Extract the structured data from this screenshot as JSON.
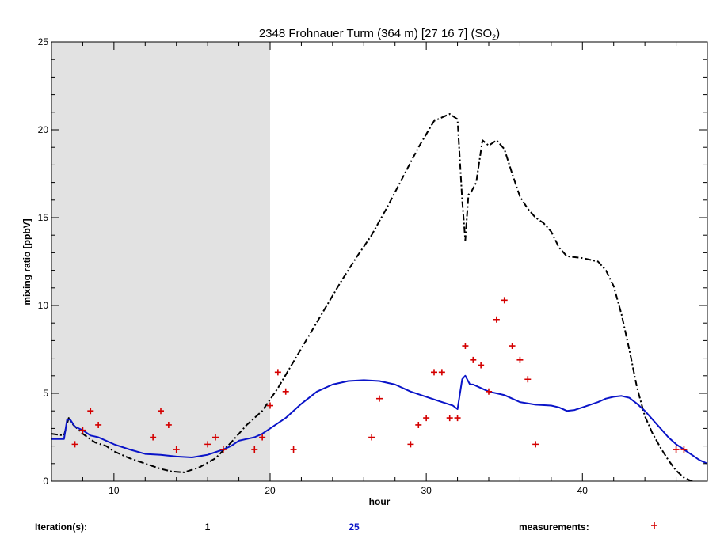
{
  "chart_data": {
    "type": "line",
    "title_main": "2348 Frohnauer Turm (364 m)  [27 16 7]  (SO",
    "title_sub": "2",
    "title_end": ")",
    "xlabel": "hour",
    "ylabel": "mixing ratio [ppbV]",
    "xlim": [
      6,
      48
    ],
    "ylim": [
      0,
      25
    ],
    "x_ticks": [
      10,
      20,
      30,
      40
    ],
    "y_ticks": [
      0,
      5,
      10,
      15,
      20,
      25
    ],
    "night_shading": [
      6,
      20
    ],
    "grid": false,
    "legend": {
      "label": "Iteration(s):",
      "first_iteration": "1",
      "last_iteration": "25",
      "measurements_label": "measurements:",
      "placement": "bottom"
    },
    "colors": {
      "iteration_1": "#000000",
      "iteration_25": "#0a14c8",
      "measurements": "#d40000",
      "shading": "#e2e2e2"
    },
    "series": [
      {
        "name": "1",
        "style": "dash-dot",
        "x": [
          6,
          6.8,
          7.1,
          7.4,
          8,
          8.8,
          9.5,
          10,
          11,
          12,
          13,
          13.7,
          14.5,
          15.5,
          16.5,
          17.5,
          18.5,
          19.5,
          20.5,
          21.5,
          22.5,
          23.5,
          24.5,
          25.5,
          26.5,
          27.5,
          28.5,
          29.5,
          30.5,
          31.5,
          32,
          32.3,
          32.5,
          32.7,
          32.9,
          33.2,
          33.6,
          34,
          34.5,
          35,
          35.5,
          36,
          36.5,
          37,
          37.5,
          38,
          38.5,
          39,
          40,
          41,
          41.5,
          42,
          42.5,
          43,
          43.5,
          44,
          44.5,
          45,
          45.5,
          46,
          46.5,
          47,
          47.5,
          48
        ],
        "y": [
          2.7,
          2.6,
          3.6,
          3.2,
          2.7,
          2.2,
          2.0,
          1.7,
          1.3,
          1.0,
          0.7,
          0.55,
          0.5,
          0.8,
          1.3,
          2.2,
          3.2,
          4.0,
          5.3,
          6.8,
          8.3,
          9.8,
          11.3,
          12.7,
          14.0,
          15.6,
          17.3,
          19.0,
          20.5,
          20.9,
          20.6,
          16.0,
          13.7,
          16.3,
          16.5,
          17.0,
          19.4,
          19.1,
          19.4,
          18.9,
          17.5,
          16.2,
          15.5,
          15.0,
          14.7,
          14.2,
          13.3,
          12.8,
          12.7,
          12.5,
          12.0,
          11.1,
          9.5,
          7.5,
          5.3,
          3.7,
          2.7,
          1.9,
          1.2,
          0.6,
          0.2,
          0.0,
          -0.1,
          -0.2
        ]
      },
      {
        "name": "25",
        "style": "solid",
        "x": [
          6,
          6.8,
          7.0,
          7.2,
          7.5,
          8,
          8.5,
          9,
          9.5,
          10,
          11,
          12,
          13,
          14,
          15,
          16,
          17,
          17.5,
          18,
          18.5,
          19,
          19.5,
          20,
          21,
          22,
          23,
          24,
          25,
          26,
          27,
          28,
          29,
          30,
          31,
          31.7,
          32.0,
          32.3,
          32.5,
          32.8,
          33,
          33.5,
          34,
          34.5,
          35,
          35.5,
          36,
          37,
          38,
          38.5,
          39,
          39.5,
          40,
          41,
          41.5,
          42,
          42.5,
          43,
          43.5,
          44,
          44.5,
          45,
          45.5,
          46,
          46.5,
          47,
          47.5,
          48
        ],
        "y": [
          2.4,
          2.4,
          3.5,
          3.5,
          3.1,
          2.9,
          2.6,
          2.5,
          2.3,
          2.1,
          1.8,
          1.55,
          1.5,
          1.4,
          1.35,
          1.5,
          1.8,
          2.0,
          2.3,
          2.4,
          2.5,
          2.7,
          3.0,
          3.6,
          4.4,
          5.1,
          5.5,
          5.7,
          5.75,
          5.7,
          5.5,
          5.1,
          4.8,
          4.5,
          4.3,
          4.1,
          5.8,
          6.0,
          5.5,
          5.5,
          5.3,
          5.1,
          5.0,
          4.9,
          4.7,
          4.5,
          4.35,
          4.3,
          4.2,
          4.0,
          4.05,
          4.2,
          4.5,
          4.7,
          4.8,
          4.85,
          4.75,
          4.4,
          4.0,
          3.5,
          3.0,
          2.5,
          2.1,
          1.8,
          1.5,
          1.2,
          1.0
        ]
      }
    ],
    "measurements": {
      "x": [
        7.5,
        8,
        8.5,
        9,
        12.5,
        13,
        13.5,
        14,
        16,
        16.5,
        17,
        19,
        19.5,
        20,
        20.5,
        21,
        21.5,
        26.5,
        27,
        29,
        29.5,
        30,
        30.5,
        31,
        31.5,
        32,
        32.5,
        33,
        33.5,
        34,
        34.5,
        35,
        35.5,
        36,
        36.5,
        37,
        46,
        46.5
      ],
      "y": [
        2.1,
        2.9,
        4.0,
        3.2,
        2.5,
        4.0,
        3.2,
        1.8,
        2.1,
        2.5,
        1.8,
        1.8,
        2.5,
        4.3,
        6.2,
        5.1,
        1.8,
        2.5,
        4.7,
        2.1,
        3.2,
        3.6,
        6.2,
        6.2,
        3.6,
        3.6,
        7.7,
        6.9,
        6.6,
        5.1,
        9.2,
        10.3,
        7.7,
        6.9,
        5.8,
        2.1,
        1.8,
        1.8
      ]
    }
  }
}
